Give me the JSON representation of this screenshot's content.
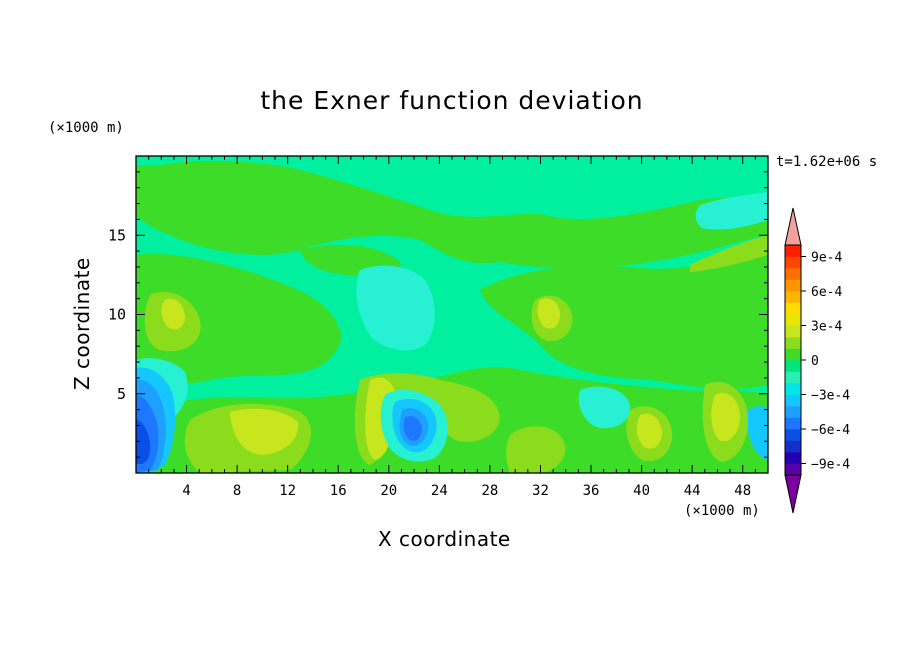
{
  "chart_data": {
    "type": "heatmap",
    "title": "the Exner function deviation",
    "xlabel": "X coordinate",
    "ylabel": "Z coordinate",
    "x_unit": "(×1000 m)",
    "y_unit": "(×1000 m)",
    "time_label": "t=1.62e+06 s",
    "xlim": [
      0,
      50
    ],
    "ylim": [
      0,
      20
    ],
    "x_ticks": [
      4,
      8,
      12,
      16,
      20,
      24,
      28,
      32,
      36,
      40,
      44,
      48
    ],
    "y_ticks": [
      5,
      10,
      15
    ],
    "colorbar": {
      "levels": [
        -0.0011,
        -0.001,
        -0.0009,
        -0.0008,
        -0.0007,
        -0.0006,
        -0.0005,
        -0.0004,
        -0.0003,
        -0.0002,
        -0.0001,
        0,
        0.0001,
        0.0002,
        0.0003,
        0.0004,
        0.0005,
        0.0006,
        0.0007,
        0.0008,
        0.0009,
        0.001
      ],
      "colors": [
        "#7a00a0",
        "#5a00a8",
        "#2800b4",
        "#1430c8",
        "#0a50e6",
        "#1e78ff",
        "#1ea0ff",
        "#14c8ff",
        "#00e6e6",
        "#28f0b4",
        "#00e67f",
        "#3cdc28",
        "#8cdc1e",
        "#c8e61e",
        "#e6e600",
        "#ffdc00",
        "#ffb400",
        "#ff9600",
        "#ff6e00",
        "#ff4600",
        "#ff1e00",
        "#f5a0a0"
      ],
      "tick_labels": [
        "9e-4",
        "6e-4",
        "3e-4",
        "0",
        "−3e-4",
        "−6e-4",
        "−9e-4"
      ],
      "tick_values": [
        0.0009,
        0.0006,
        0.0003,
        0,
        -0.0003,
        -0.0006,
        -0.0009
      ]
    },
    "field_levels": [
      {
        "value": -0.0001,
        "color": "#00f0a0",
        "note": "background"
      },
      {
        "value": 0.0,
        "color": "#3cdc28"
      },
      {
        "value": 0.0001,
        "color": "#8cdc1e"
      },
      {
        "value": 0.0002,
        "color": "#c8e61e"
      },
      {
        "value": -0.0002,
        "color": "#28f0d2"
      },
      {
        "value": -0.0003,
        "color": "#14c8ff"
      },
      {
        "value": -0.0004,
        "color": "#1ea0ff"
      },
      {
        "value": -0.0005,
        "color": "#1e78ff"
      },
      {
        "value": -0.0007,
        "color": "#0a50e6"
      }
    ]
  }
}
